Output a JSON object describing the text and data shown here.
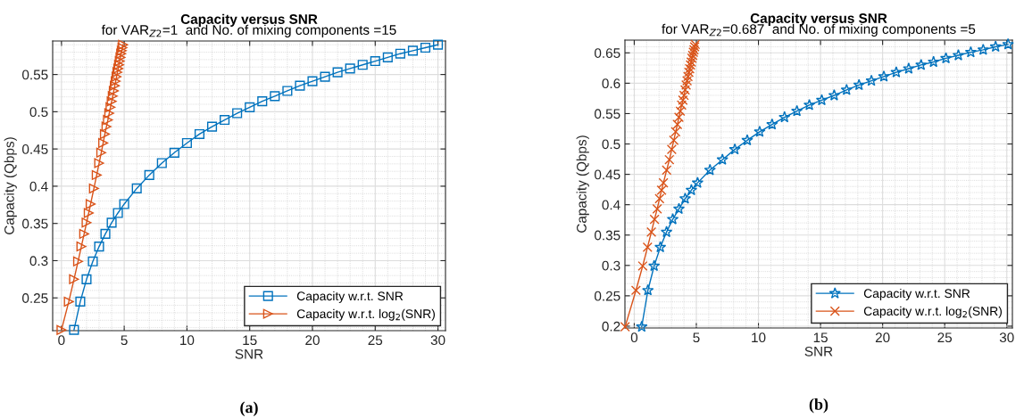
{
  "chart_data": [
    {
      "type": "line",
      "title": "Capacity versus SNR",
      "subtitle": "for VAR$_{Z2}$=1  and No. of mixing components =15",
      "xlabel": "SNR",
      "ylabel": "Capacity (Qbps)",
      "xlim": [
        -0.7,
        30.6
      ],
      "ylim": [
        0.206,
        0.595
      ],
      "xticks": [
        0,
        5,
        10,
        15,
        20,
        25,
        30
      ],
      "yticks": [
        0.25,
        0.3,
        0.35,
        0.4,
        0.45,
        0.5,
        0.55
      ],
      "grid": true,
      "legend": "bottom right",
      "annotations": [
        "(a)"
      ],
      "series": [
        {
          "name": "Capacity w.r.t. SNR",
          "color": "#0072bd",
          "marker": "square",
          "x": [
            1,
            1.5,
            2,
            2.5,
            3,
            3.5,
            4,
            4.5,
            5,
            6,
            7,
            8,
            9,
            10,
            11,
            12,
            13,
            14,
            15,
            16,
            17,
            18,
            19,
            20,
            21,
            22,
            23,
            24,
            25,
            26,
            27,
            28,
            29,
            30
          ],
          "values": [
            0.207,
            0.245,
            0.275,
            0.299,
            0.319,
            0.336,
            0.351,
            0.364,
            0.376,
            0.397,
            0.415,
            0.431,
            0.445,
            0.458,
            0.47,
            0.48,
            0.489,
            0.498,
            0.506,
            0.514,
            0.521,
            0.528,
            0.535,
            0.541,
            0.547,
            0.553,
            0.558,
            0.563,
            0.568,
            0.573,
            0.578,
            0.582,
            0.586,
            0.59
          ]
        },
        {
          "name": "Capacity w.r.t. log$_{2}$(SNR)",
          "color": "#d95319",
          "marker": "triangle",
          "x": [
            0,
            0.585,
            1,
            1.322,
            1.585,
            1.807,
            2,
            2.17,
            2.322,
            2.585,
            2.807,
            3,
            3.17,
            3.322,
            3.459,
            3.585,
            3.7,
            3.807,
            3.907,
            4,
            4.087,
            4.17,
            4.248,
            4.322,
            4.392,
            4.459,
            4.524,
            4.585,
            4.644,
            4.7,
            4.755,
            4.807,
            4.858,
            4.907
          ],
          "values": [
            0.207,
            0.245,
            0.275,
            0.299,
            0.319,
            0.336,
            0.351,
            0.364,
            0.376,
            0.397,
            0.415,
            0.431,
            0.445,
            0.458,
            0.47,
            0.48,
            0.489,
            0.498,
            0.506,
            0.514,
            0.521,
            0.528,
            0.535,
            0.541,
            0.547,
            0.553,
            0.558,
            0.563,
            0.568,
            0.573,
            0.578,
            0.582,
            0.586,
            0.59
          ]
        }
      ]
    },
    {
      "type": "line",
      "title": "Capacity versus SNR",
      "subtitle": "for VAR$_{Z2}$=0.687  and No. of mixing components =5",
      "xlabel": "SNR",
      "ylabel": "Capacity (Qbps)",
      "xlim": [
        -0.75,
        30.45
      ],
      "ylim": [
        0.197,
        0.671
      ],
      "xticks": [
        0,
        5,
        10,
        15,
        20,
        25,
        30
      ],
      "yticks": [
        0.2,
        0.25,
        0.3,
        0.35,
        0.4,
        0.45,
        0.5,
        0.55,
        0.6,
        0.65
      ],
      "grid": true,
      "legend": "bottom right",
      "annotations": [
        "(b)"
      ],
      "series": [
        {
          "name": "Capacity w.r.t. SNR",
          "color": "#0072bd",
          "marker": "star",
          "x": [
            0.6,
            1.1,
            1.6,
            2.1,
            2.6,
            3.1,
            3.6,
            4.1,
            4.6,
            5.1,
            6.1,
            7.1,
            8.1,
            9.1,
            10.1,
            11.1,
            12.1,
            13.1,
            14.1,
            15.1,
            16.1,
            17.1,
            18.1,
            19.1,
            20.1,
            21.1,
            22.1,
            23.1,
            24.1,
            25.1,
            26.1,
            27.1,
            28.1,
            29.1,
            30.1
          ],
          "values": [
            0.199,
            0.259,
            0.299,
            0.33,
            0.355,
            0.376,
            0.393,
            0.41,
            0.424,
            0.436,
            0.457,
            0.474,
            0.491,
            0.506,
            0.52,
            0.532,
            0.544,
            0.554,
            0.564,
            0.572,
            0.58,
            0.589,
            0.597,
            0.604,
            0.611,
            0.618,
            0.624,
            0.63,
            0.635,
            0.641,
            0.646,
            0.651,
            0.655,
            0.66,
            0.664
          ]
        },
        {
          "name": "Capacity w.r.t. log$_{2}$(SNR)",
          "color": "#d95319",
          "marker": "cross",
          "x": [
            -0.737,
            0.138,
            0.678,
            1.07,
            1.379,
            1.632,
            1.848,
            2.036,
            2.202,
            2.35,
            2.609,
            2.828,
            3.018,
            3.186,
            3.336,
            3.473,
            3.597,
            3.711,
            3.818,
            3.917,
            4.009,
            4.096,
            4.178,
            4.256,
            4.329,
            4.399,
            4.466,
            4.53,
            4.591,
            4.649,
            4.706,
            4.76,
            4.812,
            4.863,
            4.912
          ],
          "values": [
            0.199,
            0.259,
            0.299,
            0.33,
            0.355,
            0.376,
            0.393,
            0.41,
            0.424,
            0.436,
            0.457,
            0.474,
            0.491,
            0.506,
            0.52,
            0.532,
            0.544,
            0.554,
            0.564,
            0.572,
            0.58,
            0.589,
            0.597,
            0.604,
            0.611,
            0.618,
            0.624,
            0.63,
            0.635,
            0.641,
            0.646,
            0.651,
            0.655,
            0.66,
            0.664
          ]
        }
      ]
    }
  ]
}
